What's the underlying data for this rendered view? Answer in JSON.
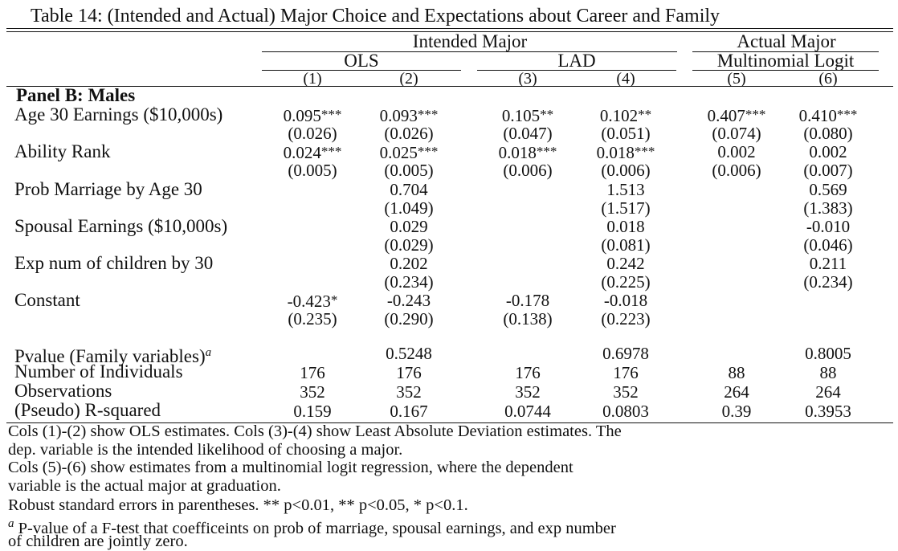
{
  "title": "Table 14: (Intended and Actual) Major Choice and Expectations about Career and Family",
  "header": {
    "intended_major": "Intended Major",
    "actual_major": "Actual Major",
    "ols": "OLS",
    "lad": "LAD",
    "multinomial_logit": "Multinomial Logit",
    "col_numbers": [
      "(1)",
      "(2)",
      "(3)",
      "(4)",
      "(5)",
      "(6)"
    ]
  },
  "panel_label": "Panel B: Males",
  "rows": [
    {
      "label": "Age 30 Earnings ($10,000s)",
      "coef": [
        [
          "0.095",
          "***"
        ],
        [
          "0.093",
          "***"
        ],
        [
          "0.105",
          "**"
        ],
        [
          "0.102",
          "**"
        ],
        [
          "0.407",
          "***"
        ],
        [
          "0.410",
          "***"
        ]
      ],
      "se": [
        "(0.026)",
        "(0.026)",
        "(0.047)",
        "(0.051)",
        "(0.074)",
        "(0.080)"
      ]
    },
    {
      "label": "Ability Rank",
      "coef": [
        [
          "0.024",
          "***"
        ],
        [
          "0.025",
          "***"
        ],
        [
          "0.018",
          "***"
        ],
        [
          "0.018",
          "***"
        ],
        [
          "0.002",
          ""
        ],
        [
          "0.002",
          ""
        ]
      ],
      "se": [
        "(0.005)",
        "(0.005)",
        "(0.006)",
        "(0.006)",
        "(0.006)",
        "(0.007)"
      ]
    },
    {
      "label": "Prob Marriage by Age 30",
      "coef": [
        [
          "",
          ""
        ],
        [
          "0.704",
          ""
        ],
        [
          "",
          ""
        ],
        [
          "1.513",
          ""
        ],
        [
          "",
          ""
        ],
        [
          "0.569",
          ""
        ]
      ],
      "se": [
        "",
        "(1.049)",
        "",
        "(1.517)",
        "",
        "(1.383)"
      ]
    },
    {
      "label": "Spousal Earnings ($10,000s)",
      "coef": [
        [
          "",
          ""
        ],
        [
          "0.029",
          ""
        ],
        [
          "",
          ""
        ],
        [
          "0.018",
          ""
        ],
        [
          "",
          ""
        ],
        [
          "-0.010",
          ""
        ]
      ],
      "se": [
        "",
        "(0.029)",
        "",
        "(0.081)",
        "",
        "(0.046)"
      ]
    },
    {
      "label": "Exp num of children by 30",
      "coef": [
        [
          "",
          ""
        ],
        [
          "0.202",
          ""
        ],
        [
          "",
          ""
        ],
        [
          "0.242",
          ""
        ],
        [
          "",
          ""
        ],
        [
          "0.211",
          ""
        ]
      ],
      "se": [
        "",
        "(0.234)",
        "",
        "(0.225)",
        "",
        "(0.234)"
      ]
    },
    {
      "label": "Constant",
      "coef": [
        [
          "-0.423",
          "*"
        ],
        [
          "-0.243",
          ""
        ],
        [
          "-0.178",
          ""
        ],
        [
          "-0.018",
          ""
        ],
        [
          "",
          ""
        ],
        [
          "",
          ""
        ]
      ],
      "se": [
        "(0.235)",
        "(0.290)",
        "(0.138)",
        "(0.223)",
        "",
        ""
      ]
    }
  ],
  "stats": [
    {
      "label": "Pvalue (Family variables)",
      "sup": "a",
      "values": [
        "",
        "0.5248",
        "",
        "0.6978",
        "",
        "0.8005"
      ]
    },
    {
      "label": "Number of Individuals",
      "sup": "",
      "values": [
        "176",
        "176",
        "176",
        "176",
        "88",
        "88"
      ]
    },
    {
      "label": "Observations",
      "sup": "",
      "values": [
        "352",
        "352",
        "352",
        "352",
        "264",
        "264"
      ]
    },
    {
      "label": "(Pseudo) R-squared",
      "sup": "",
      "values": [
        "0.159",
        "0.167",
        "0.0744",
        "0.0803",
        "0.39",
        "0.3953"
      ]
    }
  ],
  "notes": [
    {
      "sup": "",
      "text": "Cols (1)-(2) show OLS estimates. Cols (3)-(4) show Least Absolute Deviation estimates. The"
    },
    {
      "sup": "",
      "text": "dep. variable is the intended likelihood of choosing a major."
    },
    {
      "sup": "",
      "text": "Cols (5)-(6) show estimates from a multinomial logit regression, where the dependent"
    },
    {
      "sup": "",
      "text": "variable is the actual major at graduation."
    },
    {
      "sup": "",
      "text": "Robust standard errors in parentheses. ** p<0.01, ** p<0.05, * p<0.1."
    },
    {
      "sup": "a",
      "text": " P-value of a F-test that coefficeints on prob of marriage, spousal earnings, and exp number"
    },
    {
      "sup": "",
      "text": "of children are jointly zero."
    }
  ]
}
